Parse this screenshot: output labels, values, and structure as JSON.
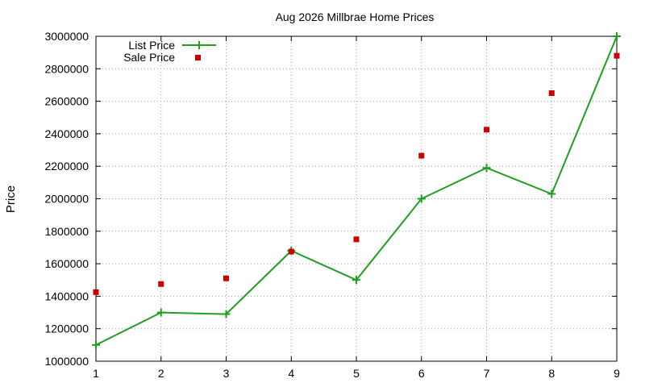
{
  "chart_data": {
    "type": "line",
    "title": "Aug 2026 Millbrae Home Prices",
    "xlabel": "",
    "ylabel": "Price",
    "x": [
      1,
      2,
      3,
      4,
      5,
      6,
      7,
      8,
      9
    ],
    "xlim": [
      1,
      9
    ],
    "ylim": [
      1000000,
      3000000
    ],
    "yticks": [
      "1000000",
      "1200000",
      "1400000",
      "1600000",
      "1800000",
      "2000000",
      "2200000",
      "2400000",
      "2600000",
      "2800000",
      "3000000"
    ],
    "xticks": [
      "1",
      "2",
      "3",
      "4",
      "5",
      "6",
      "7",
      "8",
      "9"
    ],
    "grid": true,
    "legend_position": "top-left",
    "series": [
      {
        "name": "List Price",
        "style": "line-with-plus-markers",
        "color": "#1f9e1f",
        "values": [
          1100000,
          1300000,
          1290000,
          1680000,
          1500000,
          2000000,
          2190000,
          2030000,
          3000000
        ]
      },
      {
        "name": "Sale Price",
        "style": "square-markers",
        "color": "#cc0000",
        "values": [
          1425000,
          1475000,
          1510000,
          1675000,
          1750000,
          2265000,
          2425000,
          2650000,
          2880000
        ]
      }
    ]
  }
}
